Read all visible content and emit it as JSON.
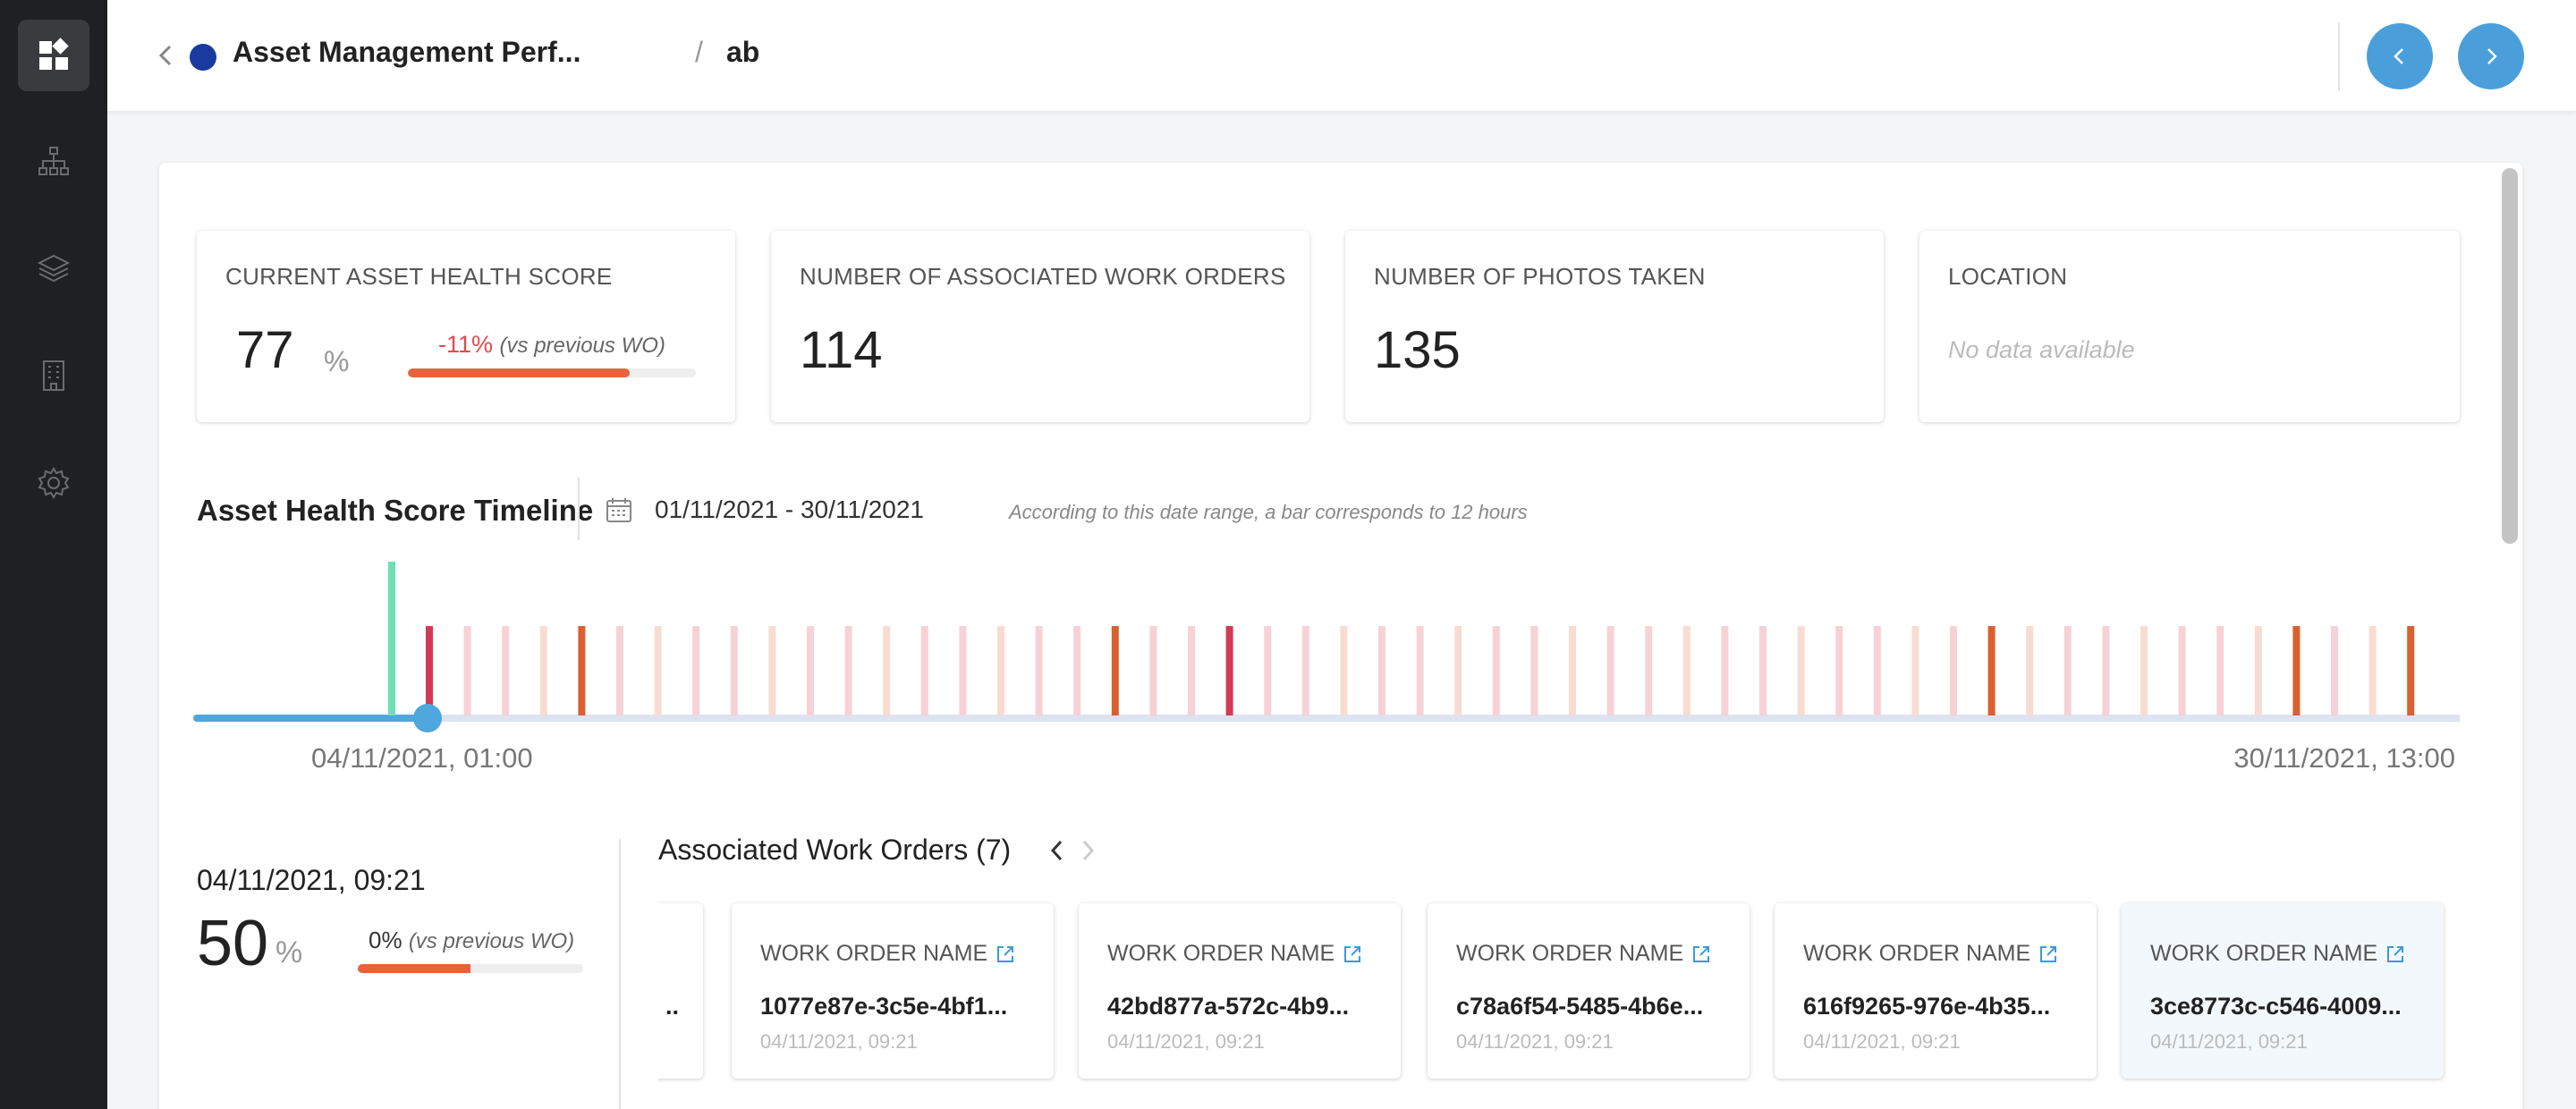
{
  "sidebar": {
    "items": [
      {
        "icon": "dashboard-icon",
        "active": true
      },
      {
        "icon": "hierarchy-icon",
        "active": false
      },
      {
        "icon": "layers-icon",
        "active": false
      },
      {
        "icon": "building-icon",
        "active": false
      },
      {
        "icon": "gear-icon",
        "active": false
      }
    ]
  },
  "header": {
    "title": "Asset Management Perf...",
    "separator": "/",
    "leaf": "ab",
    "dot_color": "#1a3aa0"
  },
  "kpis": [
    {
      "label": "CURRENT ASSET HEALTH SCORE",
      "value": "77",
      "unit": "%",
      "delta": "-11%",
      "delta_note": "(vs previous WO)",
      "progress": 0.77
    },
    {
      "label": "NUMBER OF ASSOCIATED WORK ORDERS",
      "value": "114"
    },
    {
      "label": "NUMBER OF PHOTOS TAKEN",
      "value": "135"
    },
    {
      "label": "LOCATION",
      "empty_text": "No data available"
    }
  ],
  "timeline": {
    "title": "Asset Health Score Timeline",
    "date_range": "01/11/2021 - 30/11/2021",
    "note": "According to this date range, a bar corresponds to 12 hours",
    "start_label": "04/11/2021, 01:00",
    "end_label": "30/11/2021, 13:00",
    "colors": {
      "light": "#f6d2d6",
      "peach": "#f8dcd2",
      "orange": "#d9602f",
      "red": "#d23a55",
      "teal": "#6fe0b4",
      "track": "#dde3f0",
      "progress": "#4ea8de"
    }
  },
  "selected": {
    "date": "04/11/2021, 09:21",
    "value": "50",
    "unit": "%",
    "delta": "0%",
    "delta_note": "(vs previous WO)",
    "progress": 0.5
  },
  "work_orders": {
    "title": "Associated Work Orders (7)",
    "partial_text": "..",
    "cards": [
      {
        "label": "WORK ORDER NAME",
        "id": "1077e87e-3c5e-4bf1...",
        "date": "04/11/2021, 09:21"
      },
      {
        "label": "WORK ORDER NAME",
        "id": "42bd877a-572c-4b9...",
        "date": "04/11/2021, 09:21"
      },
      {
        "label": "WORK ORDER NAME",
        "id": "c78a6f54-5485-4b6e...",
        "date": "04/11/2021, 09:21"
      },
      {
        "label": "WORK ORDER NAME",
        "id": "616f9265-976e-4b35...",
        "date": "04/11/2021, 09:21"
      },
      {
        "label": "WORK ORDER NAME",
        "id": "3ce8773c-c546-4009...",
        "date": "04/11/2021, 09:21"
      }
    ]
  }
}
